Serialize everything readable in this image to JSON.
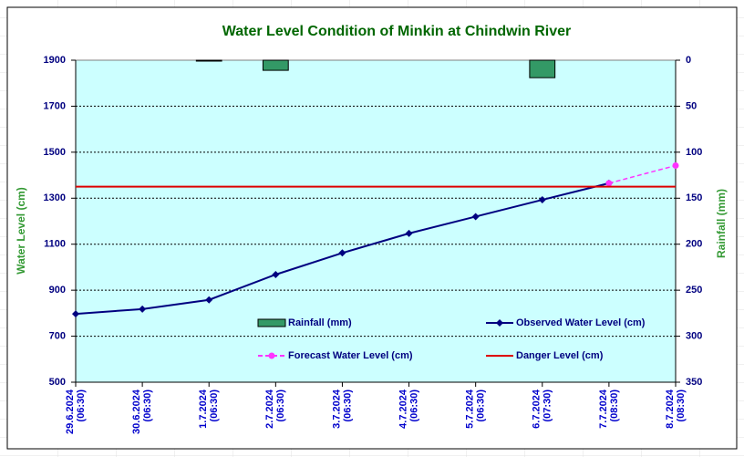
{
  "chart_data": {
    "type": "line",
    "title": "Water Level Condition of Minkin at Chindwin River",
    "y_label": "Water Level (cm)",
    "y2_label": "Rainfall (mm)",
    "categories": [
      [
        "29.6.2024",
        "(06:30)"
      ],
      [
        "30.6.2024",
        "(06:30)"
      ],
      [
        "1.7.2024",
        "(06:30)"
      ],
      [
        "2.7.2024",
        "(06:30)"
      ],
      [
        "3.7.2024",
        "(06:30)"
      ],
      [
        "4.7.2024",
        "(06:30)"
      ],
      [
        "5.7.2024",
        "(06:30)"
      ],
      [
        "6.7.2024",
        "(07:30)"
      ],
      [
        "7.7.2024",
        "(08:30)"
      ],
      [
        "8.7.2024",
        "(08:30)"
      ]
    ],
    "ylim": [
      500,
      1900
    ],
    "yticks": [
      500,
      700,
      900,
      1100,
      1300,
      1500,
      1700,
      1900
    ],
    "y2lim": [
      0,
      350
    ],
    "y2ticks": [
      0,
      50,
      100,
      150,
      200,
      250,
      300,
      350
    ],
    "y2_inverted": true,
    "grid": true,
    "series": [
      {
        "name": "Rainfall (mm)",
        "type": "bar",
        "axis": "y2",
        "color": "#339966",
        "values": [
          0,
          0,
          1,
          11,
          0,
          0,
          0,
          19,
          0,
          0
        ]
      },
      {
        "name": "Observed Water Level (cm)",
        "type": "line",
        "color": "#000080",
        "marker": "diamond",
        "values": [
          797,
          818,
          858,
          968,
          1062,
          1147,
          1220,
          1293,
          1365,
          null
        ]
      },
      {
        "name": "Forecast Water Level (cm)",
        "type": "line",
        "color": "#ff33ff",
        "marker": "circle",
        "dashed": true,
        "values": [
          null,
          null,
          null,
          null,
          null,
          null,
          null,
          null,
          1365,
          1442
        ]
      },
      {
        "name": "Danger Level (cm)",
        "type": "line",
        "color": "#dd0000",
        "values": [
          1350,
          1350,
          1350,
          1350,
          1350,
          1350,
          1350,
          1350,
          1350,
          1350
        ]
      }
    ]
  }
}
